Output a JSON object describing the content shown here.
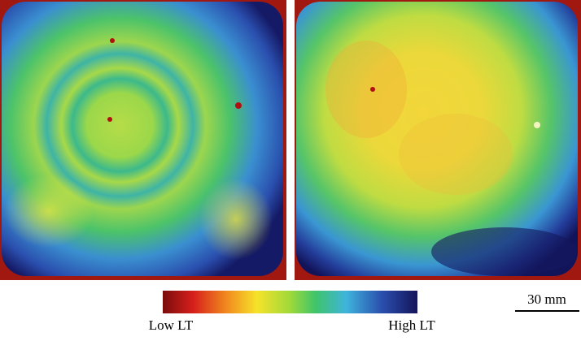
{
  "colorbar": {
    "low_label": "Low LT",
    "high_label": "High LT"
  },
  "scale_bar": {
    "label": "30 mm"
  }
}
